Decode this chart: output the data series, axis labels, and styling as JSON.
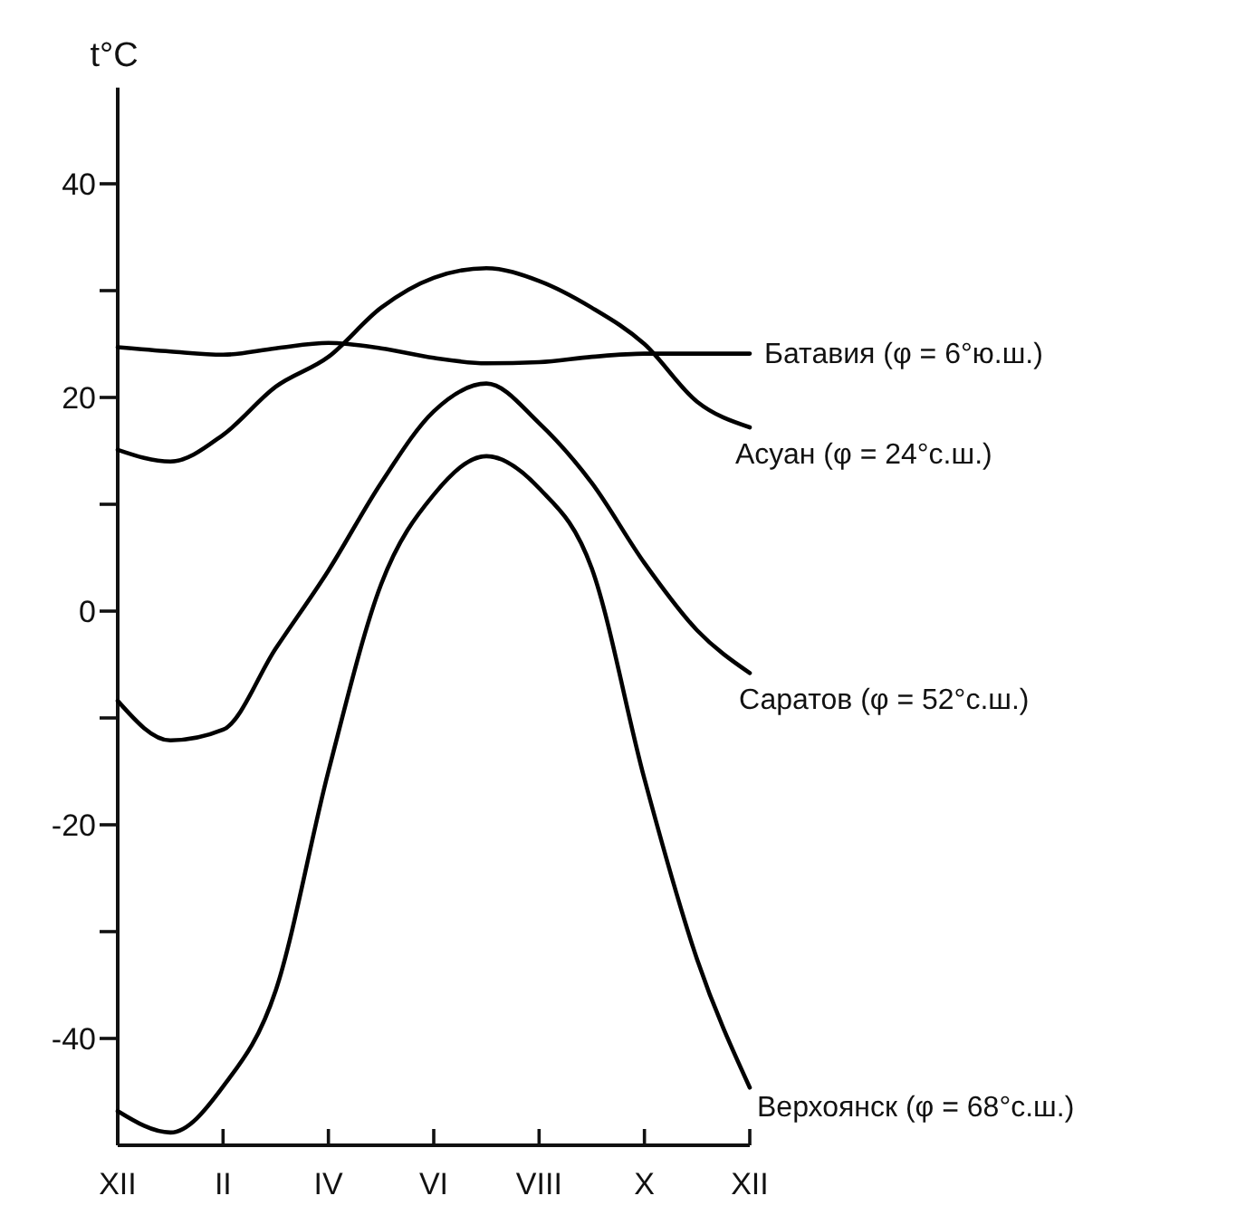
{
  "chart_data": {
    "type": "line",
    "ylabel": "t°C",
    "categories": [
      "XII",
      null,
      "II",
      null,
      "IV",
      null,
      "VI",
      null,
      "VIII",
      null,
      "X",
      null,
      "XII"
    ],
    "ylim": [
      -50,
      49
    ],
    "yticks": [
      {
        "value": -40,
        "label": "-40"
      },
      {
        "value": -30,
        "label": null
      },
      {
        "value": -20,
        "label": "-20"
      },
      {
        "value": -10,
        "label": null
      },
      {
        "value": 0,
        "label": "0"
      },
      {
        "value": 10,
        "label": null
      },
      {
        "value": 20,
        "label": "20"
      },
      {
        "value": 30,
        "label": null
      },
      {
        "value": 40,
        "label": "40"
      }
    ],
    "grid": false,
    "series": [
      {
        "name": "Батавия (φ = 6°ю.ш.)",
        "color": "#000000",
        "values": [
          24.7,
          24.3,
          24,
          24.6,
          25.1,
          24.6,
          23.7,
          23.2,
          23.3,
          23.8,
          24.1,
          24.1,
          24.1
        ]
      },
      {
        "name": "Асуан (φ = 24°с.ш.)",
        "color": "#000000",
        "values": [
          15.1,
          14,
          16.5,
          21,
          23.8,
          28.4,
          31.2,
          32.1,
          30.9,
          28.4,
          25,
          19.6,
          17.2
        ]
      },
      {
        "name": "Саратов (φ = 52°с.ш.)",
        "color": "#000000",
        "values": [
          -8.4,
          -12.1,
          -11.1,
          -3.5,
          3.8,
          12,
          18.7,
          21.3,
          17.6,
          12,
          4.5,
          -1.8,
          -5.8
        ]
      },
      {
        "name": "Верхоянск (φ = 68°с.ш.)",
        "color": "#000000",
        "values": [
          -46.8,
          -48.8,
          -44.5,
          -35.5,
          -15,
          2.5,
          10.9,
          14.5,
          11.5,
          4,
          -15.7,
          -32.6,
          -44.6
        ]
      }
    ]
  }
}
